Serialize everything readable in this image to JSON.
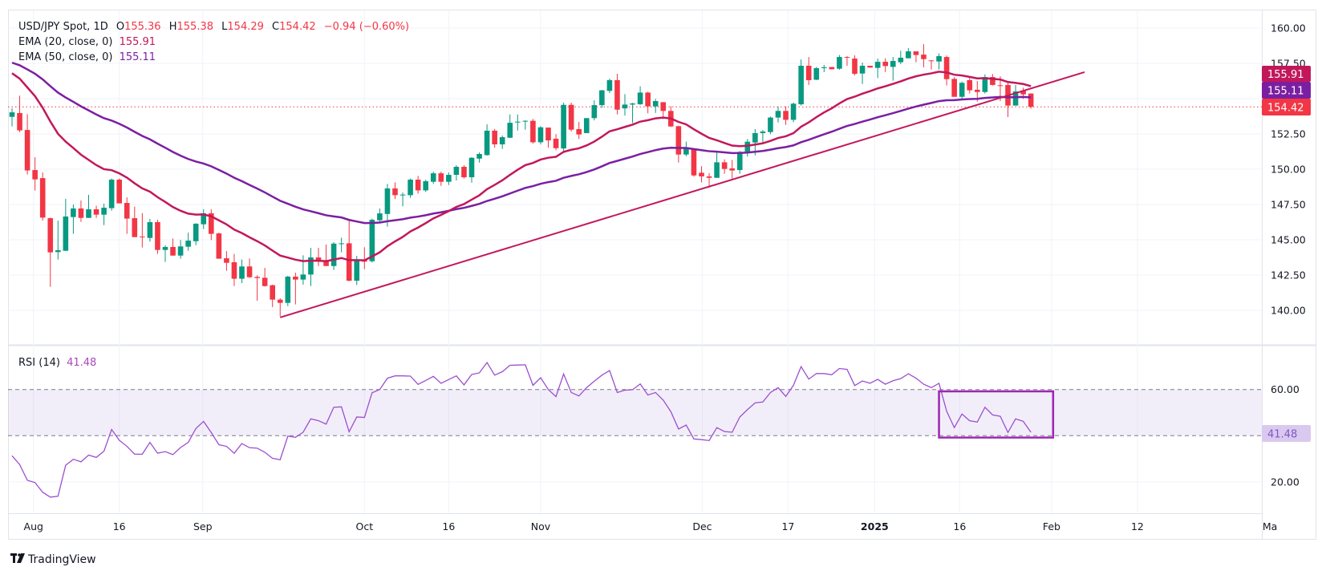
{
  "legend": {
    "symbol": "USD/JPY Spot, 1D",
    "o_label": "O",
    "o": "155.36",
    "h_label": "H",
    "h": "155.38",
    "l_label": "L",
    "l": "154.29",
    "c_label": "C",
    "c": "154.42",
    "change": "−0.94 (−0.60%)",
    "ema20_label": "EMA (20, close, 0)",
    "ema20_value": "155.91",
    "ema50_label": "EMA (50, close, 0)",
    "ema50_value": "155.11",
    "rsi_label": "RSI (14)",
    "rsi_value": "41.48"
  },
  "badges": {
    "ema20": "155.91",
    "ema50": "155.11",
    "last": "154.42",
    "rsi": "41.48"
  },
  "branding": {
    "name": "TradingView"
  },
  "colors": {
    "up": "#089981",
    "down": "#f23645",
    "ema20": "#c2185b",
    "ema50": "#7b1fa2",
    "rsi": "#9c4fd0",
    "trendline": "#c2185b",
    "box": "#9c27b0"
  },
  "chart_data": [
    {
      "type": "candlestick",
      "title": "USD/JPY Spot, 1D",
      "ylim": [
        137.5,
        161.2
      ],
      "y_ticks": [
        "160.00",
        "157.50",
        "152.50",
        "150.00",
        "147.50",
        "145.00",
        "142.50",
        "140.00"
      ],
      "y_tick_values": [
        160,
        157.5,
        152.5,
        150,
        147.5,
        145,
        142.5,
        140
      ],
      "x_ticks": [
        {
          "label": "Aug",
          "bar": 2.8,
          "bold": false
        },
        {
          "label": "16",
          "bar": 14.0,
          "bold": false
        },
        {
          "label": "Sep",
          "bar": 24.9,
          "bold": false
        },
        {
          "label": "Oct",
          "bar": 46.0,
          "bold": false
        },
        {
          "label": "16",
          "bar": 57.0,
          "bold": false
        },
        {
          "label": "Nov",
          "bar": 69.0,
          "bold": false
        },
        {
          "label": "Dec",
          "bar": 90.1,
          "bold": false
        },
        {
          "label": "17",
          "bar": 101.3,
          "bold": false
        },
        {
          "label": "2025",
          "bar": 112.6,
          "bold": true
        },
        {
          "label": "16",
          "bar": 123.7,
          "bold": false
        },
        {
          "label": "Feb",
          "bar": 135.7,
          "bold": false
        },
        {
          "label": "12",
          "bar": 146.9,
          "bold": false
        },
        {
          "label": "Ma",
          "bar": 164.2,
          "bold": false
        }
      ],
      "ohlc": [
        [
          153.71,
          154.32,
          153.03,
          154.03
        ],
        [
          153.98,
          155.21,
          152.61,
          152.75
        ],
        [
          152.78,
          153.9,
          149.62,
          149.91
        ],
        [
          149.94,
          150.85,
          148.49,
          149.28
        ],
        [
          149.37,
          149.77,
          146.36,
          146.57
        ],
        [
          146.53,
          146.57,
          141.67,
          144.11
        ],
        [
          144.13,
          146.36,
          143.6,
          144.26
        ],
        [
          144.22,
          147.9,
          144.22,
          146.65
        ],
        [
          146.61,
          147.5,
          145.42,
          147.22
        ],
        [
          147.22,
          147.78,
          146.27,
          146.55
        ],
        [
          146.55,
          148.18,
          146.55,
          147.16
        ],
        [
          147.16,
          147.41,
          146.55,
          146.78
        ],
        [
          146.78,
          147.56,
          146.04,
          147.27
        ],
        [
          147.24,
          149.34,
          147.06,
          149.26
        ],
        [
          149.26,
          149.34,
          147.58,
          147.58
        ],
        [
          147.61,
          148.01,
          145.42,
          146.5
        ],
        [
          146.53,
          147.35,
          145.19,
          145.19
        ],
        [
          145.23,
          146.89,
          144.45,
          145.19
        ],
        [
          145.13,
          146.48,
          144.87,
          146.25
        ],
        [
          146.25,
          146.42,
          144.0,
          144.28
        ],
        [
          144.28,
          144.6,
          143.43,
          144.49
        ],
        [
          144.49,
          145.09,
          143.88,
          143.88
        ],
        [
          143.88,
          144.98,
          143.66,
          144.53
        ],
        [
          144.51,
          145.51,
          144.22,
          144.94
        ],
        [
          144.9,
          146.17,
          144.62,
          146.14
        ],
        [
          146.1,
          147.16,
          145.76,
          146.88
        ],
        [
          146.88,
          147.16,
          144.98,
          145.42
        ],
        [
          145.45,
          145.51,
          143.66,
          143.66
        ],
        [
          143.69,
          144.2,
          142.8,
          143.37
        ],
        [
          143.41,
          144.0,
          141.72,
          142.24
        ],
        [
          142.24,
          143.6,
          141.93,
          143.11
        ],
        [
          143.11,
          143.68,
          142.29,
          142.35
        ],
        [
          142.37,
          142.48,
          140.68,
          142.29
        ],
        [
          142.31,
          143.01,
          141.68,
          141.72
        ],
        [
          141.78,
          141.82,
          140.23,
          140.76
        ],
        [
          140.76,
          140.85,
          139.58,
          140.53
        ],
        [
          140.53,
          142.44,
          140.3,
          142.39
        ],
        [
          142.39,
          142.67,
          140.42,
          142.18
        ],
        [
          142.18,
          143.9,
          141.82,
          142.54
        ],
        [
          142.54,
          144.43,
          141.72,
          143.75
        ],
        [
          143.75,
          144.43,
          143.14,
          143.52
        ],
        [
          143.56,
          144.66,
          143.14,
          143.14
        ],
        [
          143.14,
          144.83,
          142.86,
          144.73
        ],
        [
          144.73,
          145.15,
          144.11,
          144.75
        ],
        [
          144.75,
          146.48,
          142.06,
          142.1
        ],
        [
          142.1,
          143.86,
          141.8,
          143.58
        ],
        [
          143.58,
          144.47,
          142.92,
          143.45
        ],
        [
          143.48,
          146.5,
          143.39,
          146.42
        ],
        [
          146.38,
          147.22,
          146.27,
          146.87
        ],
        [
          146.83,
          148.96,
          145.93,
          148.64
        ],
        [
          148.64,
          149.07,
          147.88,
          148.16
        ],
        [
          148.16,
          148.35,
          147.37,
          148.2
        ],
        [
          148.16,
          149.34,
          147.97,
          149.26
        ],
        [
          149.26,
          149.53,
          148.26,
          148.5
        ],
        [
          148.5,
          149.26,
          148.39,
          149.15
        ],
        [
          149.11,
          149.83,
          148.96,
          149.71
        ],
        [
          149.71,
          149.83,
          148.82,
          149.11
        ],
        [
          149.11,
          149.77,
          148.88,
          149.6
        ],
        [
          149.6,
          150.28,
          149.2,
          150.17
        ],
        [
          150.17,
          150.28,
          149.34,
          149.43
        ],
        [
          149.43,
          150.85,
          149.05,
          150.81
        ],
        [
          150.75,
          151.19,
          150.47,
          151.08
        ],
        [
          151.0,
          153.18,
          150.96,
          152.73
        ],
        [
          152.73,
          152.86,
          151.53,
          151.76
        ],
        [
          151.76,
          152.39,
          151.44,
          152.27
        ],
        [
          152.23,
          153.88,
          152.2,
          153.29
        ],
        [
          153.33,
          153.88,
          152.74,
          153.37
        ],
        [
          153.4,
          153.46,
          152.8,
          153.43
        ],
        [
          153.43,
          153.56,
          151.82,
          151.91
        ],
        [
          151.91,
          153.05,
          151.76,
          152.97
        ],
        [
          152.95,
          152.95,
          151.53,
          152.04
        ],
        [
          152.16,
          152.48,
          151.34,
          151.49
        ],
        [
          151.47,
          154.71,
          151.29,
          154.56
        ],
        [
          154.56,
          154.71,
          152.67,
          152.8
        ],
        [
          152.84,
          153.35,
          152.14,
          152.46
        ],
        [
          152.56,
          153.62,
          152.56,
          153.62
        ],
        [
          153.62,
          154.88,
          153.46,
          154.54
        ],
        [
          154.54,
          155.62,
          154.35,
          155.59
        ],
        [
          155.55,
          156.42,
          155.4,
          156.31
        ],
        [
          156.31,
          156.76,
          153.88,
          154.22
        ],
        [
          154.31,
          155.32,
          153.8,
          154.58
        ],
        [
          154.58,
          154.7,
          153.27,
          154.66
        ],
        [
          154.6,
          155.87,
          154.56,
          155.43
        ],
        [
          155.43,
          155.49,
          153.96,
          154.45
        ],
        [
          154.45,
          154.98,
          153.99,
          154.83
        ],
        [
          154.75,
          154.75,
          153.56,
          154.13
        ],
        [
          154.13,
          154.47,
          152.99,
          153.03
        ],
        [
          153.05,
          153.09,
          150.47,
          151.04
        ],
        [
          151.04,
          151.95,
          150.91,
          151.52
        ],
        [
          151.46,
          151.46,
          149.47,
          149.56
        ],
        [
          149.75,
          150.21,
          149.07,
          149.49
        ],
        [
          149.49,
          149.72,
          148.69,
          149.39
        ],
        [
          149.39,
          151.19,
          149.39,
          150.49
        ],
        [
          150.49,
          150.7,
          149.68,
          150.02
        ],
        [
          150.06,
          150.66,
          149.34,
          149.91
        ],
        [
          149.94,
          151.29,
          149.68,
          151.23
        ],
        [
          151.23,
          152.14,
          150.89,
          151.95
        ],
        [
          151.89,
          152.84,
          150.98,
          152.56
        ],
        [
          152.56,
          152.78,
          151.85,
          152.67
        ],
        [
          152.63,
          153.73,
          152.48,
          153.66
        ],
        [
          153.66,
          154.45,
          153.31,
          154.13
        ],
        [
          154.13,
          154.45,
          153.14,
          153.5
        ],
        [
          153.5,
          154.72,
          153.33,
          154.64
        ],
        [
          154.6,
          157.78,
          154.51,
          157.33
        ],
        [
          157.33,
          157.95,
          155.97,
          156.31
        ],
        [
          156.34,
          157.25,
          156.31,
          157.16
        ],
        [
          157.16,
          157.39,
          156.88,
          157.22
        ],
        [
          157.24,
          157.24,
          157.08,
          157.08
        ],
        [
          157.12,
          158.09,
          157.05,
          157.95
        ],
        [
          157.95,
          158.01,
          157.33,
          157.92
        ],
        [
          157.84,
          158.07,
          156.65,
          156.76
        ],
        [
          156.78,
          157.56,
          156.04,
          157.33
        ],
        [
          157.33,
          157.33,
          157.2,
          157.2
        ],
        [
          157.18,
          157.84,
          156.46,
          157.61
        ],
        [
          157.61,
          157.86,
          156.88,
          157.31
        ],
        [
          157.25,
          157.95,
          156.27,
          157.67
        ],
        [
          157.58,
          158.39,
          157.44,
          157.9
        ],
        [
          157.86,
          158.58,
          157.86,
          158.35
        ],
        [
          158.35,
          158.35,
          157.58,
          158.09
        ],
        [
          158.12,
          158.86,
          157.22,
          157.8
        ],
        [
          157.71,
          157.71,
          157.07,
          157.67
        ],
        [
          157.63,
          158.2,
          157.07,
          158.01
        ],
        [
          157.95,
          158.05,
          155.93,
          156.38
        ],
        [
          156.4,
          156.53,
          155.13,
          155.13
        ],
        [
          155.13,
          156.21,
          154.98,
          156.12
        ],
        [
          156.31,
          156.53,
          155.36,
          155.59
        ],
        [
          155.63,
          156.25,
          154.79,
          155.47
        ],
        [
          155.47,
          156.72,
          155.36,
          156.53
        ],
        [
          156.53,
          156.74,
          155.93,
          155.97
        ],
        [
          155.95,
          156.59,
          154.83,
          155.91
        ],
        [
          155.97,
          156.19,
          153.69,
          154.51
        ],
        [
          154.51,
          155.97,
          154.51,
          155.51
        ],
        [
          155.55,
          155.78,
          154.98,
          155.3
        ],
        [
          155.36,
          155.38,
          154.29,
          154.42
        ]
      ],
      "ema": [
        {
          "name": "EMA (20, close, 0)",
          "period": 20,
          "start_value": 156.8,
          "last": 155.91
        },
        {
          "name": "EMA (50, close, 0)",
          "period": 50,
          "start_value": 157.55,
          "last": 155.11
        }
      ],
      "last_price": 154.42,
      "trendline": {
        "from": {
          "bar": 35,
          "price": 139.5
        },
        "to": {
          "bar": 140,
          "price": 156.88
        }
      }
    },
    {
      "type": "line",
      "title": "RSI (14)",
      "ylim": [
        5,
        80
      ],
      "y_ticks": [
        "60.00",
        "20.00"
      ],
      "y_tick_values": [
        60,
        20
      ],
      "bands": [
        40,
        60
      ],
      "values": [
        31.3,
        27.5,
        20.7,
        19.7,
        15.5,
        13.4,
        13.8,
        27.2,
        29.8,
        28.7,
        31.6,
        30.6,
        33.3,
        42.7,
        38.0,
        35.4,
        32.0,
        32.0,
        37.1,
        32.4,
        33.1,
        31.8,
        34.9,
        37.1,
        43.1,
        46.2,
        41.4,
        36.1,
        35.4,
        32.4,
        36.6,
        34.8,
        34.6,
        32.8,
        30.2,
        29.6,
        39.8,
        39.3,
        41.5,
        47.3,
        46.5,
        45.0,
        52.3,
        52.5,
        41.7,
        48.1,
        47.9,
        58.6,
        60.0,
        64.9,
        65.9,
        65.9,
        65.8,
        62.2,
        63.9,
        65.7,
        62.7,
        64.3,
        65.9,
        62.0,
        66.5,
        67.2,
        71.7,
        66.2,
        67.7,
        70.5,
        70.6,
        70.7,
        61.8,
        65.1,
        60.0,
        56.9,
        66.7,
        58.7,
        57.2,
        60.8,
        63.6,
        66.2,
        68.2,
        58.7,
        59.7,
        59.9,
        62.4,
        57.6,
        58.7,
        55.4,
        50.4,
        42.9,
        44.6,
        38.6,
        38.3,
        37.9,
        43.5,
        41.8,
        41.5,
        48.1,
        51.3,
        54.2,
        54.6,
        58.7,
        60.8,
        57.0,
        61.8,
        69.9,
        64.5,
        66.9,
        66.9,
        66.4,
        69.1,
        68.7,
        61.7,
        63.7,
        62.7,
        64.4,
        62.3,
        63.8,
        64.7,
        66.8,
        64.9,
        62.3,
        60.8,
        62.7,
        50.6,
        43.5,
        49.4,
        46.5,
        45.9,
        52.3,
        49.0,
        48.4,
        41.4,
        47.3,
        46.2,
        41.48
      ],
      "highlight_box": {
        "bar_from": 121,
        "bar_to": 135.9,
        "rsi_top": 59.2,
        "rsi_bottom": 39.2
      }
    }
  ]
}
